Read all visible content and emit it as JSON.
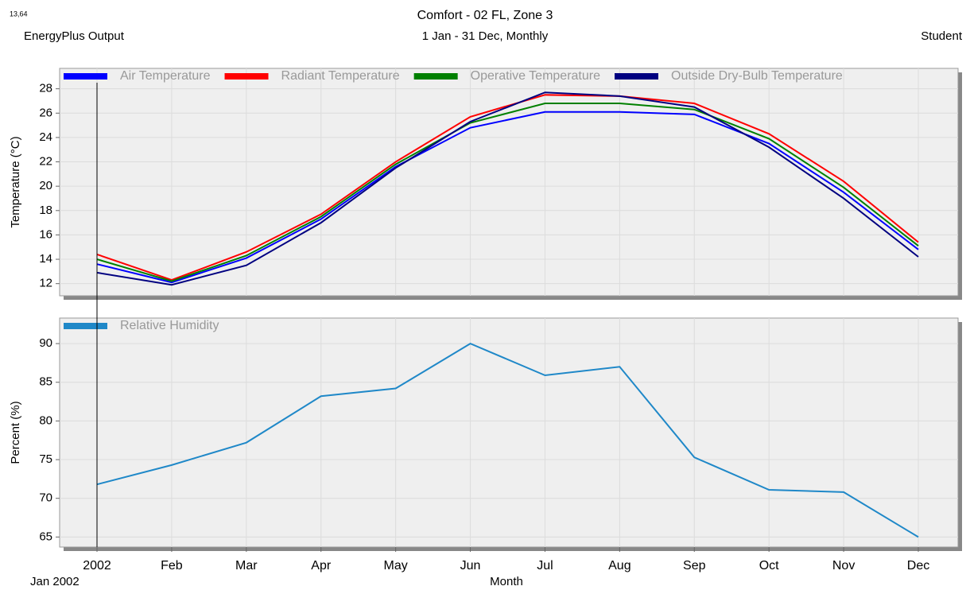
{
  "header": {
    "corner": "13,64",
    "left": "EnergyPlus Output",
    "right": "Student",
    "date": "Jan  2002"
  },
  "chart_data": [
    {
      "type": "line",
      "title": "Comfort - 02 FL, Zone 3",
      "subtitle": "1 Jan - 31 Dec, Monthly",
      "y_label": "Temperature (°C)",
      "ylim": [
        11,
        28.5
      ],
      "yticks": [
        12,
        14,
        16,
        18,
        20,
        22,
        24,
        26,
        28
      ],
      "grid": true,
      "legend": "top",
      "series": [
        {
          "name": "Air Temperature",
          "color": "#0000ff",
          "values": [
            13.6,
            12.1,
            14.1,
            17.3,
            21.6,
            24.8,
            26.1,
            26.1,
            25.9,
            23.5,
            19.5,
            14.8
          ]
        },
        {
          "name": "Radiant Temperature",
          "color": "#ff0000",
          "values": [
            14.4,
            12.3,
            14.6,
            17.7,
            22.0,
            25.7,
            27.5,
            27.4,
            26.8,
            24.3,
            20.4,
            15.4
          ]
        },
        {
          "name": "Operative Temperature",
          "color": "#008000",
          "values": [
            14.0,
            12.2,
            14.3,
            17.5,
            21.8,
            25.2,
            26.8,
            26.8,
            26.3,
            23.9,
            19.9,
            15.1
          ]
        },
        {
          "name": "Outside Dry-Bulb Temperature",
          "color": "#000080",
          "values": [
            12.9,
            11.9,
            13.5,
            17.0,
            21.5,
            25.3,
            27.7,
            27.4,
            26.5,
            23.2,
            19.0,
            14.2
          ]
        }
      ]
    },
    {
      "type": "line",
      "x_label": "Month",
      "y_label": "Percent (%)",
      "categories": [
        "2002",
        "Feb",
        "Mar",
        "Apr",
        "May",
        "Jun",
        "Jul",
        "Aug",
        "Sep",
        "Oct",
        "Nov",
        "Dec"
      ],
      "ylim": [
        63.7,
        93.3
      ],
      "yticks": [
        65,
        70,
        75,
        80,
        85,
        90
      ],
      "grid": true,
      "legend": "top",
      "series": [
        {
          "name": "Relative Humidity",
          "color": "#1f88c8",
          "values": [
            71.8,
            74.3,
            77.2,
            83.2,
            84.2,
            90.0,
            85.9,
            87.0,
            75.3,
            71.1,
            70.8,
            65.0
          ]
        }
      ]
    }
  ]
}
